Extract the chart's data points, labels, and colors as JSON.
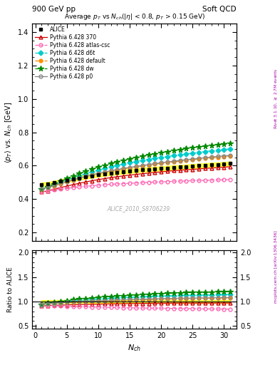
{
  "title_top_left": "900 GeV pp",
  "title_top_right": "Soft QCD",
  "plot_title": "Average $p_T$ vs $N_{ch}$(|$\\eta$| < 0.8, $p_T$ > 0.15 GeV)",
  "xlabel": "$N_{ch}$",
  "ylabel_main": "$\\langle p_T \\rangle$ vs. $N_{ch}$ [GeV]",
  "ylabel_ratio": "Ratio to ALICE",
  "right_label_top": "Rivet 3.1.10, $\\geq$ 2.7M events",
  "right_label_bottom": "mcplots.cern.ch [arXiv:1306.3436]",
  "watermark": "ALICE_2010_S8706239",
  "nch": [
    1,
    2,
    3,
    4,
    5,
    6,
    7,
    8,
    9,
    10,
    11,
    12,
    13,
    14,
    15,
    16,
    17,
    18,
    19,
    20,
    21,
    22,
    23,
    24,
    25,
    26,
    27,
    28,
    29,
    30,
    31
  ],
  "ALICE": [
    0.488,
    0.49,
    0.498,
    0.506,
    0.514,
    0.52,
    0.527,
    0.534,
    0.54,
    0.546,
    0.551,
    0.556,
    0.56,
    0.564,
    0.568,
    0.572,
    0.575,
    0.578,
    0.581,
    0.584,
    0.587,
    0.59,
    0.592,
    0.595,
    0.598,
    0.6,
    0.603,
    0.606,
    0.608,
    0.61,
    0.613
  ],
  "py370": [
    0.442,
    0.45,
    0.46,
    0.469,
    0.478,
    0.487,
    0.495,
    0.503,
    0.51,
    0.517,
    0.523,
    0.529,
    0.534,
    0.539,
    0.544,
    0.548,
    0.552,
    0.556,
    0.56,
    0.563,
    0.567,
    0.57,
    0.573,
    0.576,
    0.578,
    0.581,
    0.584,
    0.586,
    0.589,
    0.591,
    0.594
  ],
  "py_atlas_csc": [
    0.445,
    0.45,
    0.455,
    0.46,
    0.465,
    0.469,
    0.473,
    0.477,
    0.48,
    0.483,
    0.486,
    0.489,
    0.491,
    0.493,
    0.495,
    0.497,
    0.499,
    0.501,
    0.502,
    0.504,
    0.505,
    0.507,
    0.508,
    0.509,
    0.511,
    0.512,
    0.513,
    0.514,
    0.515,
    0.516,
    0.518
  ],
  "py_d6t": [
    0.46,
    0.472,
    0.486,
    0.5,
    0.514,
    0.527,
    0.54,
    0.552,
    0.563,
    0.574,
    0.584,
    0.593,
    0.602,
    0.61,
    0.618,
    0.625,
    0.632,
    0.638,
    0.644,
    0.65,
    0.655,
    0.661,
    0.666,
    0.671,
    0.675,
    0.68,
    0.685,
    0.689,
    0.693,
    0.697,
    0.701
  ],
  "py_default": [
    0.458,
    0.468,
    0.48,
    0.492,
    0.503,
    0.514,
    0.524,
    0.534,
    0.543,
    0.552,
    0.56,
    0.567,
    0.574,
    0.581,
    0.587,
    0.593,
    0.599,
    0.604,
    0.609,
    0.614,
    0.619,
    0.623,
    0.628,
    0.632,
    0.636,
    0.64,
    0.644,
    0.648,
    0.651,
    0.655,
    0.658
  ],
  "py_dw": [
    0.46,
    0.475,
    0.492,
    0.508,
    0.524,
    0.539,
    0.554,
    0.567,
    0.58,
    0.592,
    0.603,
    0.614,
    0.624,
    0.633,
    0.642,
    0.65,
    0.658,
    0.665,
    0.672,
    0.679,
    0.685,
    0.691,
    0.697,
    0.703,
    0.708,
    0.713,
    0.718,
    0.723,
    0.727,
    0.732,
    0.736
  ],
  "py_p0": [
    0.462,
    0.47,
    0.482,
    0.494,
    0.505,
    0.516,
    0.526,
    0.536,
    0.545,
    0.554,
    0.562,
    0.57,
    0.577,
    0.584,
    0.59,
    0.596,
    0.602,
    0.607,
    0.613,
    0.618,
    0.623,
    0.627,
    0.632,
    0.636,
    0.64,
    0.644,
    0.648,
    0.652,
    0.656,
    0.659,
    0.663
  ],
  "color_ALICE": "#000000",
  "color_370": "#cc0000",
  "color_atlas_csc": "#ff69b4",
  "color_d6t": "#00cccc",
  "color_default": "#ff8c00",
  "color_dw": "#008800",
  "color_p0": "#888888",
  "ylim_main": [
    0.15,
    1.45
  ],
  "ylim_ratio": [
    0.45,
    2.05
  ],
  "xlim": [
    -0.5,
    32
  ],
  "yticks_main": [
    0.2,
    0.4,
    0.6,
    0.8,
    1.0,
    1.2,
    1.4
  ],
  "yticks_ratio": [
    0.5,
    1.0,
    1.5,
    2.0
  ],
  "xticks": [
    0,
    5,
    10,
    15,
    20,
    25,
    30
  ]
}
